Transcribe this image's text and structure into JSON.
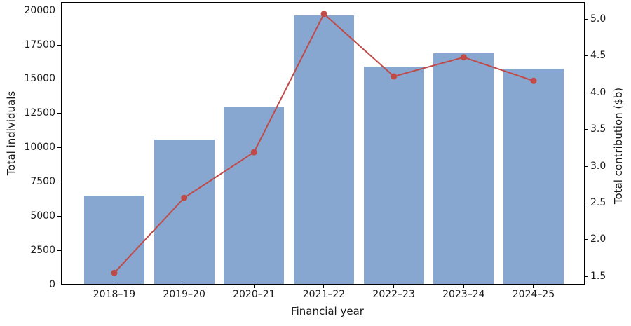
{
  "chart_data": {
    "type": "bar",
    "subtype": "bar-with-line-secondary-axis",
    "title": "",
    "xlabel": "Financial year",
    "ylabel_left": "Total individuals",
    "ylabel_right": "Total contribution ($b)",
    "categories": [
      "2018–19",
      "2019–20",
      "2020–21",
      "2021–22",
      "2022–23",
      "2023–24",
      "2024–25"
    ],
    "series": [
      {
        "name": "Total individuals",
        "type": "bar",
        "axis": "left",
        "color": "#88a7d0",
        "values": [
          6500,
          10600,
          13000,
          19650,
          15900,
          16900,
          15750
        ]
      },
      {
        "name": "Total contribution ($b)",
        "type": "line",
        "axis": "right",
        "color": "#bf4a47",
        "marker": "circle",
        "values": [
          1.55,
          2.57,
          3.19,
          5.07,
          4.22,
          4.48,
          4.16
        ]
      }
    ],
    "left_axis_ticks": [
      "0",
      "2500",
      "5000",
      "7500",
      "10000",
      "12500",
      "15000",
      "17500",
      "20000"
    ],
    "right_axis_ticks": [
      "1.5",
      "2.0",
      "2.5",
      "3.0",
      "3.5",
      "4.0",
      "4.5",
      "5.0"
    ],
    "ylim_left": [
      0,
      20630
    ],
    "ylim_right": [
      1.39,
      5.23
    ],
    "grid": false,
    "legend_position": "none"
  }
}
